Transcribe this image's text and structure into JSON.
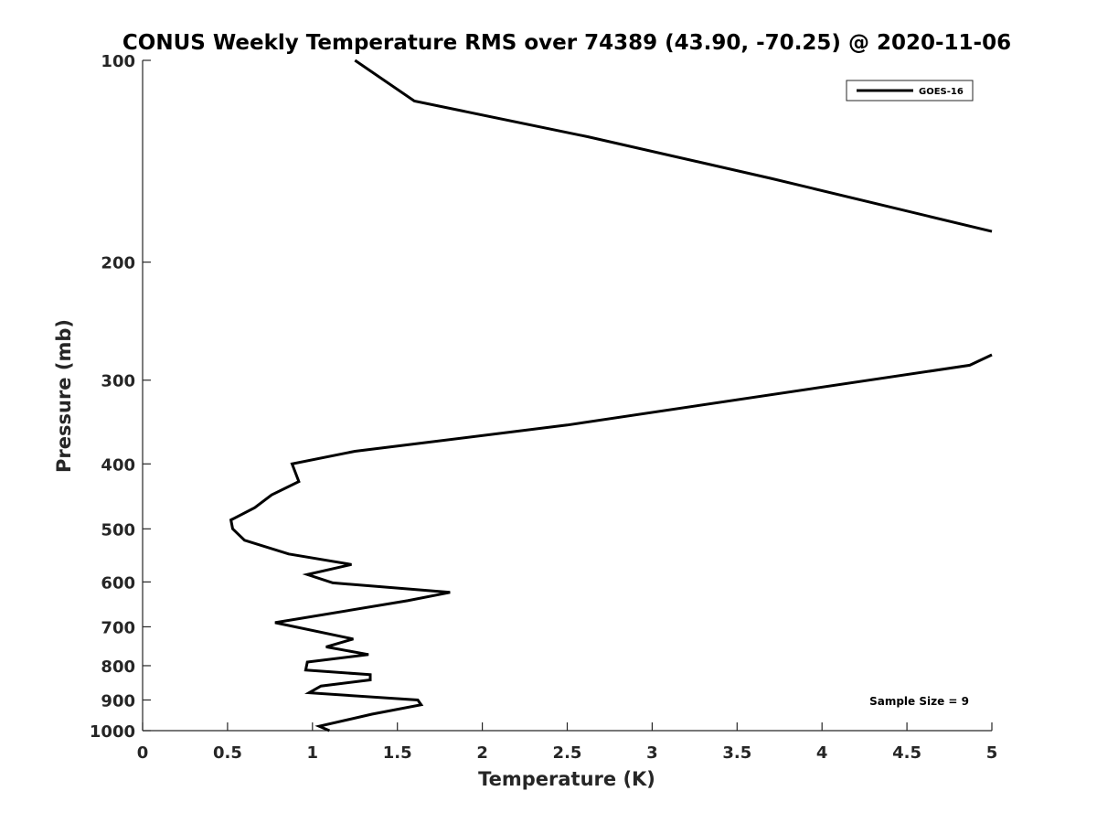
{
  "chart_data": {
    "type": "line",
    "title": "CONUS Weekly Temperature RMS over 74389 (43.90, -70.25) @ 2020-11-06",
    "xlabel": "Temperature (K)",
    "ylabel": "Pressure (mb)",
    "xlim": [
      0,
      5
    ],
    "ylim": [
      100,
      1000
    ],
    "y_scale": "log",
    "y_reversed": true,
    "x_ticks": [
      "0",
      "0.5",
      "1",
      "1.5",
      "2",
      "2.5",
      "3",
      "3.5",
      "4",
      "4.5",
      "5"
    ],
    "y_ticks": [
      "100",
      "200",
      "300",
      "400",
      "500",
      "600",
      "700",
      "800",
      "900",
      "1000"
    ],
    "grid": false,
    "legend_position": "top-right",
    "annotation": "Sample Size = 9",
    "series": [
      {
        "name": "GOES-16",
        "color": "#000000",
        "segments": [
          [
            {
              "x": 1.25,
              "y": 100
            },
            {
              "x": 1.6,
              "y": 115
            },
            {
              "x": 2.62,
              "y": 130
            },
            {
              "x": 3.7,
              "y": 150
            },
            {
              "x": 5.0,
              "y": 180
            }
          ],
          [
            {
              "x": 5.0,
              "y": 275
            },
            {
              "x": 4.87,
              "y": 285
            },
            {
              "x": 2.5,
              "y": 350
            },
            {
              "x": 1.25,
              "y": 383
            },
            {
              "x": 0.88,
              "y": 400
            },
            {
              "x": 0.92,
              "y": 425
            },
            {
              "x": 0.76,
              "y": 445
            },
            {
              "x": 0.66,
              "y": 465
            },
            {
              "x": 0.52,
              "y": 485
            },
            {
              "x": 0.53,
              "y": 500
            },
            {
              "x": 0.6,
              "y": 520
            },
            {
              "x": 0.86,
              "y": 545
            },
            {
              "x": 1.23,
              "y": 565
            },
            {
              "x": 0.97,
              "y": 585
            },
            {
              "x": 1.12,
              "y": 602
            },
            {
              "x": 1.81,
              "y": 622
            },
            {
              "x": 1.56,
              "y": 640
            },
            {
              "x": 0.78,
              "y": 690
            },
            {
              "x": 1.24,
              "y": 730
            },
            {
              "x": 1.08,
              "y": 750
            },
            {
              "x": 1.33,
              "y": 770
            },
            {
              "x": 0.97,
              "y": 790
            },
            {
              "x": 0.96,
              "y": 812
            },
            {
              "x": 1.34,
              "y": 825
            },
            {
              "x": 1.34,
              "y": 840
            },
            {
              "x": 1.05,
              "y": 858
            },
            {
              "x": 0.98,
              "y": 878
            },
            {
              "x": 1.62,
              "y": 900
            },
            {
              "x": 1.64,
              "y": 915
            },
            {
              "x": 1.35,
              "y": 945
            },
            {
              "x": 1.04,
              "y": 985
            },
            {
              "x": 1.1,
              "y": 1000
            }
          ]
        ]
      }
    ]
  }
}
